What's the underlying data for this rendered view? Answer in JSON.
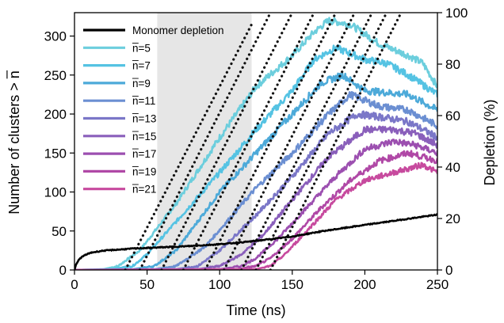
{
  "chart_data": {
    "type": "line",
    "x_label": "Time (ns)",
    "y_label_left": "Number of clusters > n̅",
    "y_label_right": "Depletion (%)",
    "xlim": [
      0,
      250
    ],
    "ylim_left": [
      0,
      330
    ],
    "ylim_right": [
      0,
      100
    ],
    "x_ticks": [
      0,
      50,
      100,
      150,
      200,
      250
    ],
    "y_ticks_left": [
      0,
      50,
      100,
      150,
      200,
      250,
      300
    ],
    "y_ticks_right": [
      0,
      20,
      40,
      60,
      80,
      100
    ],
    "grid": false,
    "legend_position": "upper-left",
    "shaded_region": {
      "x_start": 57,
      "x_end": 122,
      "color": "#e6e6e6"
    },
    "depletion_series": {
      "name": "Monomer depletion",
      "color": "#000000",
      "axis": "right",
      "x": [
        0,
        1,
        3,
        5,
        8,
        12,
        20,
        40,
        60,
        80,
        100,
        120,
        140,
        150,
        170,
        200,
        225,
        250
      ],
      "values": [
        0,
        2,
        4,
        5,
        6,
        6.8,
        7.5,
        8.3,
        8.8,
        9.3,
        10,
        11,
        12.3,
        13,
        15,
        17.5,
        19.5,
        21.5
      ]
    },
    "series": [
      {
        "name": "n̅=5",
        "color": "#6ccedd",
        "x": [
          0,
          20,
          30,
          45,
          70,
          100,
          125,
          150,
          165,
          175,
          190,
          210,
          230,
          240,
          250
        ],
        "values": [
          0,
          1,
          5,
          25,
          85,
          170,
          235,
          275,
          305,
          320,
          315,
          290,
          275,
          265,
          235
        ]
      },
      {
        "name": "n̅=7",
        "color": "#55c3e3",
        "x": [
          0,
          25,
          40,
          50,
          100,
          125,
          150,
          165,
          180,
          200,
          215,
          230,
          250
        ],
        "values": [
          0,
          1,
          5,
          20,
          125,
          180,
          230,
          270,
          285,
          270,
          265,
          250,
          225
        ]
      },
      {
        "name": "n̅=9",
        "color": "#4daad9",
        "x": [
          0,
          40,
          55,
          70,
          100,
          125,
          150,
          170,
          185,
          200,
          230,
          250
        ],
        "values": [
          0,
          1,
          5,
          25,
          100,
          150,
          200,
          240,
          250,
          230,
          225,
          205
        ]
      },
      {
        "name": "n̅=11",
        "color": "#6b8fd2",
        "x": [
          0,
          55,
          70,
          90,
          125,
          150,
          175,
          190,
          210,
          230,
          250
        ],
        "values": [
          0,
          1,
          5,
          30,
          105,
          150,
          200,
          225,
          210,
          205,
          185
        ]
      },
      {
        "name": "n̅=13",
        "color": "#7b77c8",
        "x": [
          0,
          70,
          85,
          100,
          125,
          150,
          175,
          195,
          215,
          230,
          250
        ],
        "values": [
          0,
          1,
          5,
          25,
          70,
          120,
          175,
          200,
          195,
          190,
          170
        ]
      },
      {
        "name": "n̅=15",
        "color": "#8a5fbb",
        "x": [
          0,
          85,
          100,
          115,
          130,
          150,
          175,
          200,
          220,
          235,
          250
        ],
        "values": [
          0,
          1,
          5,
          20,
          45,
          90,
          145,
          180,
          180,
          175,
          160
        ]
      },
      {
        "name": "n̅=17",
        "color": "#9c4fb0",
        "x": [
          0,
          100,
          115,
          125,
          140,
          160,
          180,
          200,
          220,
          235,
          250
        ],
        "values": [
          0,
          1,
          5,
          15,
          40,
          80,
          120,
          155,
          165,
          160,
          150
        ]
      },
      {
        "name": "n̅=19",
        "color": "#b048a6",
        "x": [
          0,
          112,
          125,
          135,
          150,
          170,
          190,
          210,
          230,
          250
        ],
        "values": [
          0,
          1,
          5,
          15,
          40,
          80,
          115,
          140,
          150,
          140
        ]
      },
      {
        "name": "n̅=21",
        "color": "#c74a9e",
        "x": [
          0,
          125,
          135,
          145,
          160,
          180,
          200,
          220,
          240,
          250
        ],
        "values": [
          0,
          1,
          5,
          20,
          50,
          90,
          115,
          125,
          135,
          125
        ]
      }
    ],
    "fit_lines": [
      {
        "x": [
          35,
          122
        ],
        "values": [
          0,
          315
        ]
      },
      {
        "x": [
          45,
          135
        ],
        "values": [
          0,
          330
        ]
      },
      {
        "x": [
          60,
          150
        ],
        "values": [
          0,
          330
        ]
      },
      {
        "x": [
          75,
          165
        ],
        "values": [
          0,
          330
        ]
      },
      {
        "x": [
          90,
          180
        ],
        "values": [
          0,
          330
        ]
      },
      {
        "x": [
          103,
          193
        ],
        "values": [
          0,
          330
        ]
      },
      {
        "x": [
          115,
          205
        ],
        "values": [
          0,
          330
        ]
      },
      {
        "x": [
          125,
          215
        ],
        "values": [
          0,
          330
        ]
      },
      {
        "x": [
          135,
          225
        ],
        "values": [
          0,
          330
        ]
      }
    ]
  }
}
